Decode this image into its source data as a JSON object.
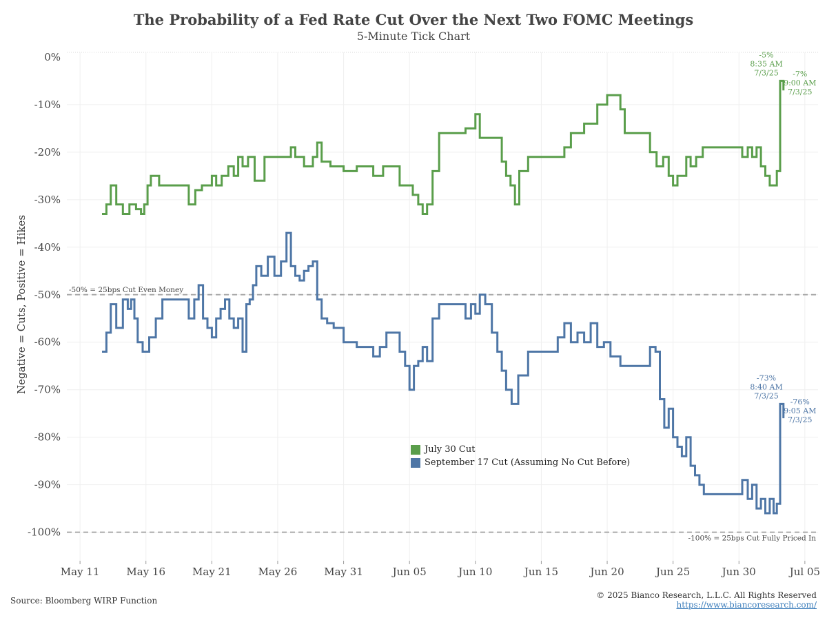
{
  "title": "The Probability of a Fed Rate Cut Over the Next Two FOMC Meetings",
  "subtitle": "5-Minute Tick Chart",
  "source": "Source: Bloomberg WIRP Function",
  "copyright": "© 2025 Bianco Research, L.L.C. All Rights Reserved",
  "url": "https://www.biancoresearch.com/",
  "chart_data": {
    "type": "line",
    "ylabel": "Negative = Cuts, Positive = Hikes",
    "xlabel": "",
    "ylim": [
      -106,
      1
    ],
    "xlim": [
      "2025-05-10",
      "2025-07-06"
    ],
    "y_ticks": [
      {
        "value": 0,
        "label": "0%"
      },
      {
        "value": -10,
        "label": "-10%"
      },
      {
        "value": -20,
        "label": "-20%"
      },
      {
        "value": -30,
        "label": "-30%"
      },
      {
        "value": -40,
        "label": "-40%"
      },
      {
        "value": -50,
        "label": "-50%"
      },
      {
        "value": -60,
        "label": "-60%"
      },
      {
        "value": -70,
        "label": "-70%"
      },
      {
        "value": -80,
        "label": "-80%"
      },
      {
        "value": -90,
        "label": "-90%"
      },
      {
        "value": -100,
        "label": "-100%"
      }
    ],
    "x_ticks": [
      {
        "date": "2025-05-11",
        "label": "May 11"
      },
      {
        "date": "2025-05-16",
        "label": "May 16"
      },
      {
        "date": "2025-05-21",
        "label": "May 21"
      },
      {
        "date": "2025-05-26",
        "label": "May 26"
      },
      {
        "date": "2025-05-31",
        "label": "May 31"
      },
      {
        "date": "2025-06-05",
        "label": "Jun 05"
      },
      {
        "date": "2025-06-10",
        "label": "Jun 10"
      },
      {
        "date": "2025-06-15",
        "label": "Jun 15"
      },
      {
        "date": "2025-06-20",
        "label": "Jun 20"
      },
      {
        "date": "2025-06-25",
        "label": "Jun 25"
      },
      {
        "date": "2025-06-30",
        "label": "Jun 30"
      },
      {
        "date": "2025-07-05",
        "label": "Jul 05"
      }
    ],
    "grid": true,
    "legend_position": "bottom-center",
    "reference_lines": [
      {
        "y": -50,
        "label": "-50% = 25bps Cut Even Money",
        "label_side": "left",
        "color": "#aaaaaa"
      },
      {
        "y": -100,
        "label": "-100% = 25bps Cut Fully Priced In",
        "label_side": "right",
        "color": "#aaaaaa"
      }
    ],
    "series": [
      {
        "name": "July 30 Cut",
        "color": "#5a9e4b",
        "points": [
          [
            "2025-05-13",
            -33
          ],
          [
            "2025-05-13",
            -31
          ],
          [
            "2025-05-13",
            -27
          ],
          [
            "2025-05-14",
            -31
          ],
          [
            "2025-05-14",
            -33
          ],
          [
            "2025-05-15",
            -31
          ],
          [
            "2025-05-15",
            -32
          ],
          [
            "2025-05-16",
            -33
          ],
          [
            "2025-05-16",
            -31
          ],
          [
            "2025-05-16",
            -27
          ],
          [
            "2025-05-16",
            -25
          ],
          [
            "2025-05-17",
            -27
          ],
          [
            "2025-05-19",
            -27
          ],
          [
            "2025-05-19",
            -31
          ],
          [
            "2025-05-20",
            -28
          ],
          [
            "2025-05-20",
            -27
          ],
          [
            "2025-05-21",
            -27
          ],
          [
            "2025-05-21",
            -25
          ],
          [
            "2025-05-21",
            -27
          ],
          [
            "2025-05-22",
            -25
          ],
          [
            "2025-05-22",
            -23
          ],
          [
            "2025-05-23",
            -25
          ],
          [
            "2025-05-23",
            -21
          ],
          [
            "2025-05-23",
            -23
          ],
          [
            "2025-05-24",
            -21
          ],
          [
            "2025-05-24",
            -26
          ],
          [
            "2025-05-25",
            -21
          ],
          [
            "2025-05-27",
            -21
          ],
          [
            "2025-05-27",
            -19
          ],
          [
            "2025-05-27",
            -21
          ],
          [
            "2025-05-28",
            -23
          ],
          [
            "2025-05-29",
            -21
          ],
          [
            "2025-05-29",
            -18
          ],
          [
            "2025-05-29",
            -22
          ],
          [
            "2025-05-30",
            -23
          ],
          [
            "2025-05-31",
            -24
          ],
          [
            "2025-06-01",
            -23
          ],
          [
            "2025-06-02",
            -23
          ],
          [
            "2025-06-02",
            -25
          ],
          [
            "2025-06-03",
            -23
          ],
          [
            "2025-06-04",
            -23
          ],
          [
            "2025-06-04",
            -27
          ],
          [
            "2025-06-05",
            -27
          ],
          [
            "2025-06-05",
            -29
          ],
          [
            "2025-06-06",
            -31
          ],
          [
            "2025-06-06",
            -33
          ],
          [
            "2025-06-06",
            -31
          ],
          [
            "2025-06-07",
            -24
          ],
          [
            "2025-06-07",
            -16
          ],
          [
            "2025-06-08",
            -16
          ],
          [
            "2025-06-09",
            -16
          ],
          [
            "2025-06-09",
            -15
          ],
          [
            "2025-06-10",
            -15
          ],
          [
            "2025-06-10",
            -12
          ],
          [
            "2025-06-10",
            -17
          ],
          [
            "2025-06-11",
            -17
          ],
          [
            "2025-06-12",
            -17
          ],
          [
            "2025-06-12",
            -22
          ],
          [
            "2025-06-12",
            -25
          ],
          [
            "2025-06-13",
            -27
          ],
          [
            "2025-06-13",
            -31
          ],
          [
            "2025-06-13",
            -24
          ],
          [
            "2025-06-14",
            -21
          ],
          [
            "2025-06-15",
            -21
          ],
          [
            "2025-06-16",
            -21
          ],
          [
            "2025-06-17",
            -19
          ],
          [
            "2025-06-17",
            -16
          ],
          [
            "2025-06-18",
            -16
          ],
          [
            "2025-06-18",
            -14
          ],
          [
            "2025-06-19",
            -14
          ],
          [
            "2025-06-19",
            -10
          ],
          [
            "2025-06-20",
            -8
          ],
          [
            "2025-06-21",
            -8
          ],
          [
            "2025-06-21",
            -11
          ],
          [
            "2025-06-21",
            -16
          ],
          [
            "2025-06-22",
            -16
          ],
          [
            "2025-06-23",
            -16
          ],
          [
            "2025-06-23",
            -20
          ],
          [
            "2025-06-24",
            -23
          ],
          [
            "2025-06-24",
            -21
          ],
          [
            "2025-06-25",
            -25
          ],
          [
            "2025-06-25",
            -27
          ],
          [
            "2025-06-25",
            -25
          ],
          [
            "2025-06-26",
            -25
          ],
          [
            "2025-06-26",
            -21
          ],
          [
            "2025-06-26",
            -23
          ],
          [
            "2025-06-27",
            -21
          ],
          [
            "2025-06-27",
            -19
          ],
          [
            "2025-06-29",
            -19
          ],
          [
            "2025-06-30",
            -19
          ],
          [
            "2025-06-30",
            -21
          ],
          [
            "2025-07-01",
            -19
          ],
          [
            "2025-07-01",
            -21
          ],
          [
            "2025-07-01",
            -19
          ],
          [
            "2025-07-02",
            -23
          ],
          [
            "2025-07-02",
            -25
          ],
          [
            "2025-07-02",
            -27
          ],
          [
            "2025-07-03",
            -27
          ],
          [
            "2025-07-03",
            -24
          ],
          [
            "2025-07-03",
            -5
          ],
          [
            "2025-07-03",
            -7
          ]
        ]
      },
      {
        "name": "September 17 Cut (Assuming No Cut Before)",
        "color": "#4e76a6",
        "points": [
          [
            "2025-05-13",
            -62
          ],
          [
            "2025-05-13",
            -58
          ],
          [
            "2025-05-13",
            -52
          ],
          [
            "2025-05-14",
            -57
          ],
          [
            "2025-05-14",
            -51
          ],
          [
            "2025-05-15",
            -53
          ],
          [
            "2025-05-15",
            -51
          ],
          [
            "2025-05-15",
            -55
          ],
          [
            "2025-05-15",
            -60
          ],
          [
            "2025-05-16",
            -62
          ],
          [
            "2025-05-16",
            -59
          ],
          [
            "2025-05-17",
            -55
          ],
          [
            "2025-05-17",
            -51
          ],
          [
            "2025-05-18",
            -51
          ],
          [
            "2025-05-19",
            -51
          ],
          [
            "2025-05-19",
            -55
          ],
          [
            "2025-05-20",
            -51
          ],
          [
            "2025-05-20",
            -48
          ],
          [
            "2025-05-20",
            -55
          ],
          [
            "2025-05-21",
            -57
          ],
          [
            "2025-05-21",
            -59
          ],
          [
            "2025-05-21",
            -55
          ],
          [
            "2025-05-22",
            -53
          ],
          [
            "2025-05-22",
            -51
          ],
          [
            "2025-05-22",
            -55
          ],
          [
            "2025-05-23",
            -57
          ],
          [
            "2025-05-23",
            -55
          ],
          [
            "2025-05-23",
            -62
          ],
          [
            "2025-05-24",
            -52
          ],
          [
            "2025-05-24",
            -51
          ],
          [
            "2025-05-24",
            -48
          ],
          [
            "2025-05-24",
            -44
          ],
          [
            "2025-05-25",
            -46
          ],
          [
            "2025-05-25",
            -42
          ],
          [
            "2025-05-26",
            -46
          ],
          [
            "2025-05-26",
            -43
          ],
          [
            "2025-05-27",
            -37
          ],
          [
            "2025-05-27",
            -44
          ],
          [
            "2025-05-27",
            -46
          ],
          [
            "2025-05-28",
            -47
          ],
          [
            "2025-05-28",
            -45
          ],
          [
            "2025-05-28",
            -44
          ],
          [
            "2025-05-29",
            -43
          ],
          [
            "2025-05-29",
            -51
          ],
          [
            "2025-05-29",
            -55
          ],
          [
            "2025-05-30",
            -56
          ],
          [
            "2025-05-30",
            -57
          ],
          [
            "2025-05-31",
            -60
          ],
          [
            "2025-06-01",
            -61
          ],
          [
            "2025-06-02",
            -61
          ],
          [
            "2025-06-02",
            -63
          ],
          [
            "2025-06-03",
            -61
          ],
          [
            "2025-06-03",
            -58
          ],
          [
            "2025-06-04",
            -58
          ],
          [
            "2025-06-04",
            -62
          ],
          [
            "2025-06-05",
            -65
          ],
          [
            "2025-06-05",
            -70
          ],
          [
            "2025-06-05",
            -65
          ],
          [
            "2025-06-06",
            -64
          ],
          [
            "2025-06-06",
            -61
          ],
          [
            "2025-06-06",
            -64
          ],
          [
            "2025-06-07",
            -55
          ],
          [
            "2025-06-07",
            -52
          ],
          [
            "2025-06-08",
            -52
          ],
          [
            "2025-06-09",
            -52
          ],
          [
            "2025-06-09",
            -55
          ],
          [
            "2025-06-10",
            -52
          ],
          [
            "2025-06-10",
            -54
          ],
          [
            "2025-06-10",
            -50
          ],
          [
            "2025-06-11",
            -52
          ],
          [
            "2025-06-11",
            -58
          ],
          [
            "2025-06-12",
            -62
          ],
          [
            "2025-06-12",
            -66
          ],
          [
            "2025-06-12",
            -70
          ],
          [
            "2025-06-13",
            -73
          ],
          [
            "2025-06-13",
            -67
          ],
          [
            "2025-06-14",
            -62
          ],
          [
            "2025-06-15",
            -62
          ],
          [
            "2025-06-16",
            -62
          ],
          [
            "2025-06-16",
            -59
          ],
          [
            "2025-06-17",
            -56
          ],
          [
            "2025-06-17",
            -60
          ],
          [
            "2025-06-18",
            -58
          ],
          [
            "2025-06-18",
            -60
          ],
          [
            "2025-06-19",
            -56
          ],
          [
            "2025-06-19",
            -61
          ],
          [
            "2025-06-20",
            -60
          ],
          [
            "2025-06-20",
            -63
          ],
          [
            "2025-06-21",
            -65
          ],
          [
            "2025-06-22",
            -65
          ],
          [
            "2025-06-23",
            -65
          ],
          [
            "2025-06-23",
            -61
          ],
          [
            "2025-06-24",
            -62
          ],
          [
            "2025-06-24",
            -72
          ],
          [
            "2025-06-24",
            -78
          ],
          [
            "2025-06-25",
            -74
          ],
          [
            "2025-06-25",
            -80
          ],
          [
            "2025-06-25",
            -82
          ],
          [
            "2025-06-26",
            -84
          ],
          [
            "2025-06-26",
            -80
          ],
          [
            "2025-06-26",
            -86
          ],
          [
            "2025-06-27",
            -88
          ],
          [
            "2025-06-27",
            -90
          ],
          [
            "2025-06-27",
            -92
          ],
          [
            "2025-06-28",
            -92
          ],
          [
            "2025-06-29",
            -92
          ],
          [
            "2025-06-30",
            -92
          ],
          [
            "2025-06-30",
            -89
          ],
          [
            "2025-07-01",
            -93
          ],
          [
            "2025-07-01",
            -90
          ],
          [
            "2025-07-01",
            -95
          ],
          [
            "2025-07-02",
            -93
          ],
          [
            "2025-07-02",
            -96
          ],
          [
            "2025-07-02",
            -93
          ],
          [
            "2025-07-03",
            -96
          ],
          [
            "2025-07-03",
            -94
          ],
          [
            "2025-07-03",
            -73
          ],
          [
            "2025-07-03",
            -76
          ]
        ]
      }
    ],
    "annotations": [
      {
        "series": 0,
        "date": "2025-07-03",
        "y": -5,
        "lines": [
          "-5%",
          "8:35 AM",
          "7/3/25"
        ],
        "side": "left"
      },
      {
        "series": 0,
        "date": "2025-07-03",
        "y": -7,
        "lines": [
          "-7%",
          "9:00 AM",
          "7/3/25"
        ],
        "side": "right"
      },
      {
        "series": 1,
        "date": "2025-07-03",
        "y": -73,
        "lines": [
          "-73%",
          "8:40 AM",
          "7/3/25"
        ],
        "side": "left"
      },
      {
        "series": 1,
        "date": "2025-07-03",
        "y": -76,
        "lines": [
          "-76%",
          "9:05 AM",
          "7/3/25"
        ],
        "side": "right"
      }
    ]
  }
}
